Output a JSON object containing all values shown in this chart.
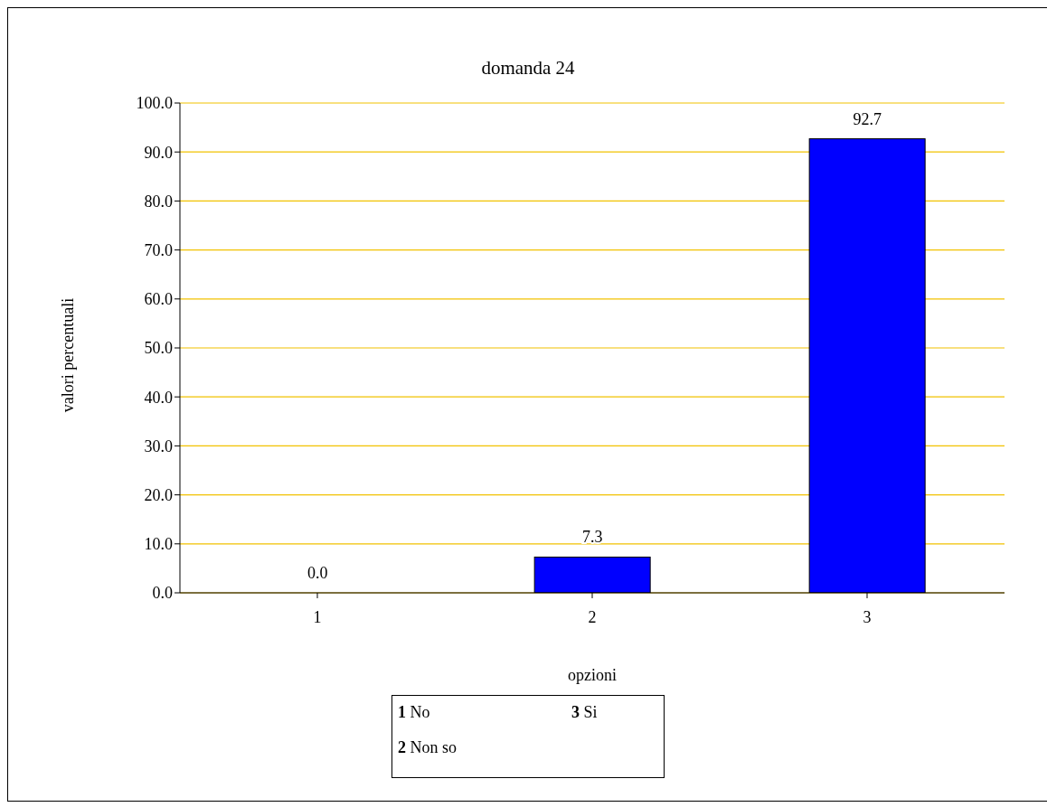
{
  "chart_data": {
    "type": "bar",
    "title": "domanda 24",
    "xlabel": "opzioni",
    "ylabel": "valori percentuali",
    "categories": [
      "1",
      "2",
      "3"
    ],
    "values": [
      0,
      7.3,
      92.7
    ],
    "value_labels": [
      "0.0",
      "7.3",
      "92.7"
    ],
    "color": "#0000ff",
    "ylim": [
      0,
      100
    ],
    "yticks": [
      {
        "value": 0,
        "label": "0.0"
      },
      {
        "value": 10,
        "label": "10.0"
      },
      {
        "value": 20,
        "label": "20.0"
      },
      {
        "value": 30,
        "label": "30.0"
      },
      {
        "value": 40,
        "label": "40.0"
      },
      {
        "value": 50,
        "label": "50.0"
      },
      {
        "value": 60,
        "label": "60.0"
      },
      {
        "value": 70,
        "label": "70.0"
      },
      {
        "value": 80,
        "label": "80.0"
      },
      {
        "value": 90,
        "label": "90.0"
      },
      {
        "value": 100,
        "label": "100.0"
      }
    ],
    "grid": "y",
    "annotations": [
      "1 No",
      "2 Non so",
      "3 Si"
    ]
  }
}
